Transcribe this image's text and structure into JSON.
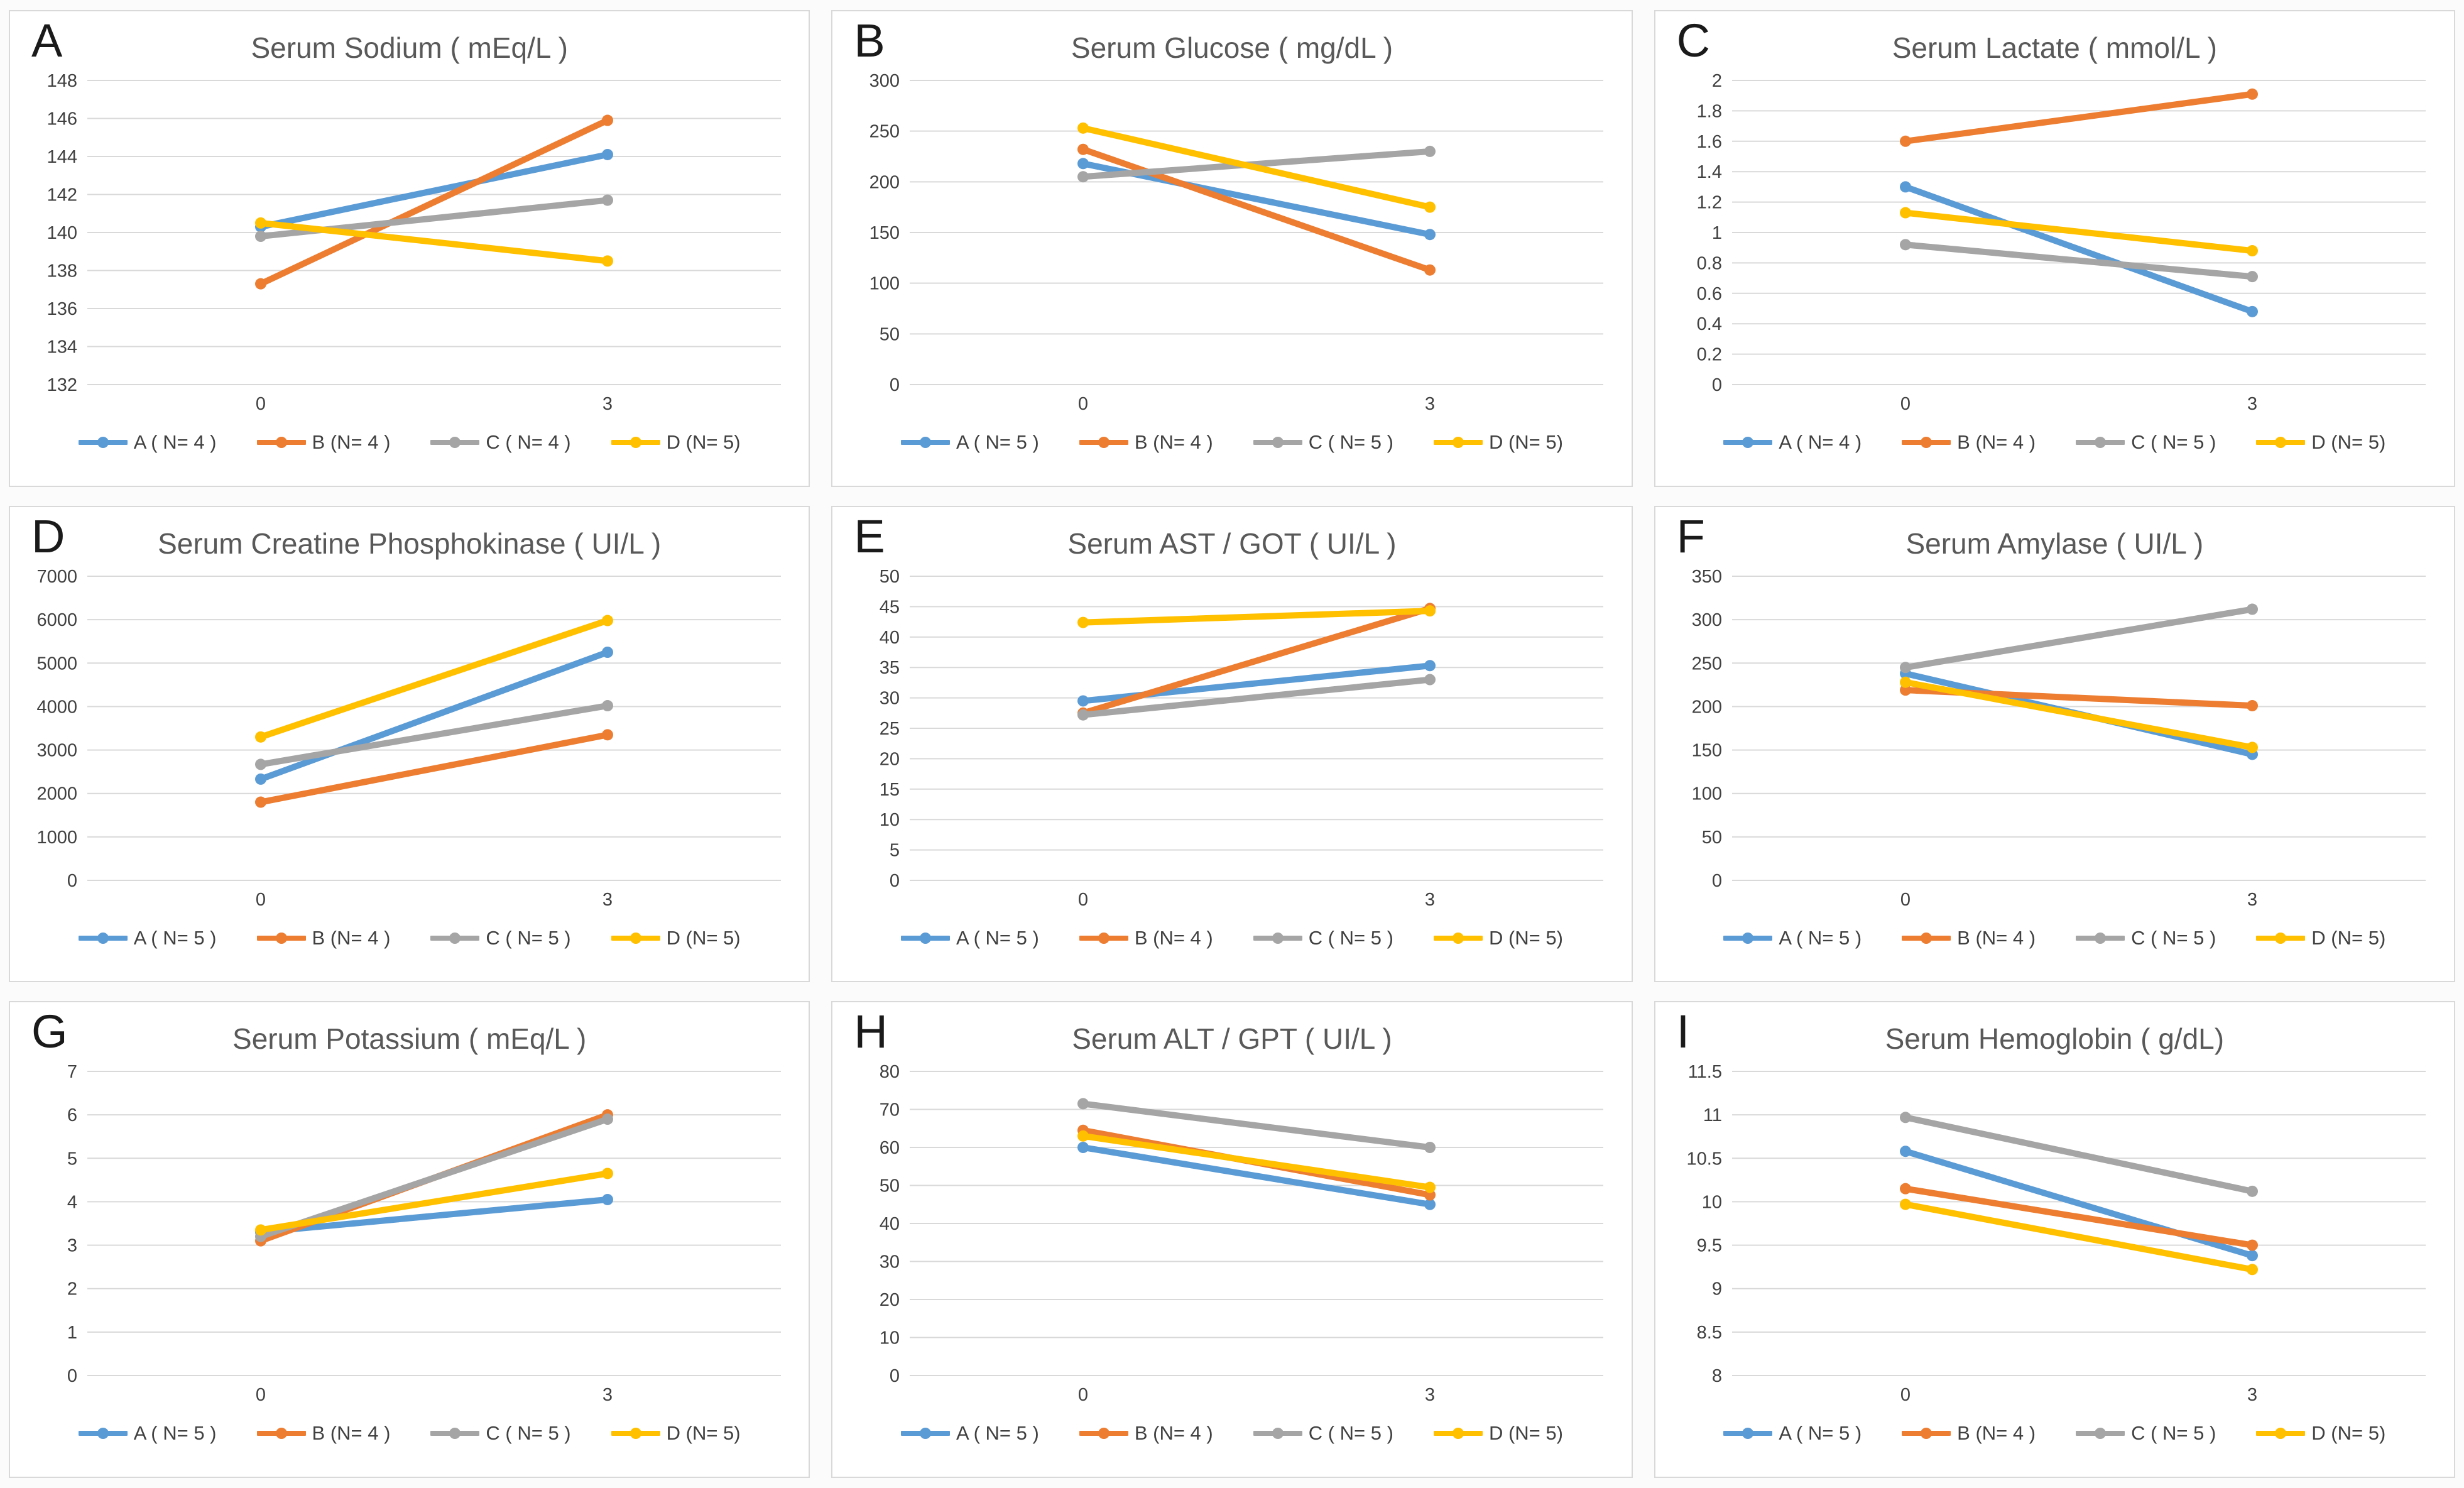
{
  "page": {
    "description": "Figure with nine Excel-style line charts of serum laboratory values for groups A-D at time 0 and 3",
    "background_color": "#fbfbfb",
    "panel_background": "#ffffff",
    "panel_border_color": "#d9d9d9",
    "gridline_color": "#d9d9d9",
    "title_color": "#595959",
    "tick_color": "#404040",
    "letter_color": "#1a1a1a"
  },
  "series_colors": {
    "blue": "#5B9BD5",
    "orange": "#ED7D31",
    "gray": "#A5A5A5",
    "yellow": "#FFC000"
  },
  "chart_data": [
    {
      "type": "line",
      "panel_label": "A",
      "title": "Serum Sodium ( mEq/L )",
      "x": [
        0,
        3
      ],
      "x_tick_labels": [
        "0",
        "3"
      ],
      "ylim": [
        132,
        148
      ],
      "yticks": [
        148,
        146,
        144,
        142,
        140,
        138,
        136,
        134,
        132
      ],
      "ytick_labels": [
        "148",
        "146",
        "144",
        "142",
        "140",
        "138",
        "136",
        "134",
        "132"
      ],
      "grid": true,
      "legend_position": "bottom",
      "series": [
        {
          "name": "A ( N= 4 )",
          "color": "#5B9BD5",
          "values": [
            140.3,
            144.1
          ]
        },
        {
          "name": "B (N= 4 )",
          "color": "#ED7D31",
          "values": [
            137.3,
            145.9
          ]
        },
        {
          "name": "C ( N= 4 )",
          "color": "#A5A5A5",
          "values": [
            139.8,
            141.7
          ]
        },
        {
          "name": "D (N= 5)",
          "color": "#FFC000",
          "values": [
            140.5,
            138.5
          ]
        }
      ]
    },
    {
      "type": "line",
      "panel_label": "B",
      "title": "Serum Glucose ( mg/dL )",
      "x": [
        0,
        3
      ],
      "x_tick_labels": [
        "0",
        "3"
      ],
      "ylim": [
        0,
        300
      ],
      "yticks": [
        300,
        250,
        200,
        150,
        100,
        50,
        0
      ],
      "ytick_labels": [
        "300",
        "250",
        "200",
        "150",
        "100",
        "50",
        "0"
      ],
      "grid": true,
      "legend_position": "bottom",
      "series": [
        {
          "name": "A ( N= 5 )",
          "color": "#5B9BD5",
          "values": [
            218,
            148
          ]
        },
        {
          "name": "B (N= 4 )",
          "color": "#ED7D31",
          "values": [
            232,
            113
          ]
        },
        {
          "name": "C ( N= 5 )",
          "color": "#A5A5A5",
          "values": [
            205,
            230
          ]
        },
        {
          "name": "D (N= 5)",
          "color": "#FFC000",
          "values": [
            253,
            175
          ]
        }
      ]
    },
    {
      "type": "line",
      "panel_label": "C",
      "title": "Serum Lactate ( mmol/L )",
      "x": [
        0,
        3
      ],
      "x_tick_labels": [
        "0",
        "3"
      ],
      "ylim": [
        0,
        2
      ],
      "yticks": [
        2,
        1.8,
        1.6,
        1.4,
        1.2,
        1,
        0.8,
        0.6,
        0.4,
        0.2,
        0
      ],
      "ytick_labels": [
        "2",
        "1.8",
        "1.6",
        "1.4",
        "1.2",
        "1",
        "0.8",
        "0.6",
        "0.4",
        "0.2",
        "0"
      ],
      "grid": true,
      "legend_position": "bottom",
      "series": [
        {
          "name": "A ( N= 4 )",
          "color": "#5B9BD5",
          "values": [
            1.3,
            0.48
          ]
        },
        {
          "name": "B (N= 4 )",
          "color": "#ED7D31",
          "values": [
            1.6,
            1.91
          ]
        },
        {
          "name": "C ( N= 5 )",
          "color": "#A5A5A5",
          "values": [
            0.92,
            0.71
          ]
        },
        {
          "name": "D (N= 5)",
          "color": "#FFC000",
          "values": [
            1.13,
            0.88
          ]
        }
      ]
    },
    {
      "type": "line",
      "panel_label": "D",
      "title": "Serum Creatine Phosphokinase ( UI/L )",
      "x": [
        0,
        3
      ],
      "x_tick_labels": [
        "0",
        "3"
      ],
      "ylim": [
        0,
        7000
      ],
      "yticks": [
        7000,
        6000,
        5000,
        4000,
        3000,
        2000,
        1000,
        0
      ],
      "ytick_labels": [
        "7000",
        "6000",
        "5000",
        "4000",
        "3000",
        "2000",
        "1000",
        "0"
      ],
      "grid": true,
      "legend_position": "bottom",
      "series": [
        {
          "name": "A ( N= 5 )",
          "color": "#5B9BD5",
          "values": [
            2330,
            5250
          ]
        },
        {
          "name": "B (N= 4 )",
          "color": "#ED7D31",
          "values": [
            1800,
            3350
          ]
        },
        {
          "name": "C ( N= 5 )",
          "color": "#A5A5A5",
          "values": [
            2670,
            4020
          ]
        },
        {
          "name": "D (N= 5)",
          "color": "#FFC000",
          "values": [
            3300,
            5980
          ]
        }
      ]
    },
    {
      "type": "line",
      "panel_label": "E",
      "title": "Serum AST / GOT ( UI/L )",
      "x": [
        0,
        3
      ],
      "x_tick_labels": [
        "0",
        "3"
      ],
      "ylim": [
        0,
        50
      ],
      "yticks": [
        50,
        45,
        40,
        35,
        30,
        25,
        20,
        15,
        10,
        5,
        0
      ],
      "ytick_labels": [
        "50",
        "45",
        "40",
        "35",
        "30",
        "25",
        "20",
        "15",
        "10",
        "5",
        "0"
      ],
      "grid": true,
      "legend_position": "bottom",
      "series": [
        {
          "name": "A ( N= 5 )",
          "color": "#5B9BD5",
          "values": [
            29.5,
            35.3
          ]
        },
        {
          "name": "B (N= 4 )",
          "color": "#ED7D31",
          "values": [
            27.5,
            44.7
          ]
        },
        {
          "name": "C ( N= 5 )",
          "color": "#A5A5A5",
          "values": [
            27.2,
            33
          ]
        },
        {
          "name": "D (N= 5)",
          "color": "#FFC000",
          "values": [
            42.4,
            44.3
          ]
        }
      ]
    },
    {
      "type": "line",
      "panel_label": "F",
      "title": "Serum Amylase ( UI/L )",
      "x": [
        0,
        3
      ],
      "x_tick_labels": [
        "0",
        "3"
      ],
      "ylim": [
        0,
        350
      ],
      "yticks": [
        350,
        300,
        250,
        200,
        150,
        100,
        50,
        0
      ],
      "ytick_labels": [
        "350",
        "300",
        "250",
        "200",
        "150",
        "100",
        "50",
        "0"
      ],
      "grid": true,
      "legend_position": "bottom",
      "series": [
        {
          "name": "A ( N= 5 )",
          "color": "#5B9BD5",
          "values": [
            238,
            145
          ]
        },
        {
          "name": "B (N= 4 )",
          "color": "#ED7D31",
          "values": [
            219,
            201
          ]
        },
        {
          "name": "C ( N= 5 )",
          "color": "#A5A5A5",
          "values": [
            245,
            312
          ]
        },
        {
          "name": "D (N= 5)",
          "color": "#FFC000",
          "values": [
            228,
            153
          ]
        }
      ]
    },
    {
      "type": "line",
      "panel_label": "G",
      "title": "Serum Potassium ( mEq/L )",
      "x": [
        0,
        3
      ],
      "x_tick_labels": [
        "0",
        "3"
      ],
      "ylim": [
        0,
        7
      ],
      "yticks": [
        7,
        6,
        5,
        4,
        3,
        2,
        1,
        0
      ],
      "ytick_labels": [
        "7",
        "6",
        "5",
        "4",
        "3",
        "2",
        "1",
        "0"
      ],
      "grid": true,
      "legend_position": "bottom",
      "series": [
        {
          "name": "A ( N= 5 )",
          "color": "#5B9BD5",
          "values": [
            3.3,
            4.05
          ]
        },
        {
          "name": "B (N= 4 )",
          "color": "#ED7D31",
          "values": [
            3.1,
            6.0
          ]
        },
        {
          "name": "C ( N= 5 )",
          "color": "#A5A5A5",
          "values": [
            3.2,
            5.9
          ]
        },
        {
          "name": "D (N= 5)",
          "color": "#FFC000",
          "values": [
            3.35,
            4.65
          ]
        }
      ]
    },
    {
      "type": "line",
      "panel_label": "H",
      "title": "Serum ALT / GPT ( UI/L )",
      "x": [
        0,
        3
      ],
      "x_tick_labels": [
        "0",
        "3"
      ],
      "ylim": [
        0,
        80
      ],
      "yticks": [
        80,
        70,
        60,
        50,
        40,
        30,
        20,
        10,
        0
      ],
      "ytick_labels": [
        "80",
        "70",
        "60",
        "50",
        "40",
        "30",
        "20",
        "10",
        "0"
      ],
      "grid": true,
      "legend_position": "bottom",
      "series": [
        {
          "name": "A ( N= 5 )",
          "color": "#5B9BD5",
          "values": [
            60,
            45
          ]
        },
        {
          "name": "B (N= 4 )",
          "color": "#ED7D31",
          "values": [
            64.5,
            47.5
          ]
        },
        {
          "name": "C ( N= 5 )",
          "color": "#A5A5A5",
          "values": [
            71.5,
            60
          ]
        },
        {
          "name": "D (N= 5)",
          "color": "#FFC000",
          "values": [
            63,
            49.5
          ]
        }
      ]
    },
    {
      "type": "line",
      "panel_label": "I",
      "title": "Serum Hemoglobin ( g/dL)",
      "x": [
        0,
        3
      ],
      "x_tick_labels": [
        "0",
        "3"
      ],
      "ylim": [
        8,
        11.5
      ],
      "yticks": [
        11.5,
        11,
        10.5,
        10,
        9.5,
        9,
        8.5,
        8
      ],
      "ytick_labels": [
        "11.5",
        "11",
        "10.5",
        "10",
        "9.5",
        "9",
        "8.5",
        "8"
      ],
      "grid": true,
      "legend_position": "bottom",
      "series": [
        {
          "name": "A ( N= 5 )",
          "color": "#5B9BD5",
          "values": [
            10.58,
            9.38
          ]
        },
        {
          "name": "B (N= 4 )",
          "color": "#ED7D31",
          "values": [
            10.15,
            9.5
          ]
        },
        {
          "name": "C ( N= 5 )",
          "color": "#A5A5A5",
          "values": [
            10.97,
            10.12
          ]
        },
        {
          "name": "D (N= 5)",
          "color": "#FFC000",
          "values": [
            9.97,
            9.22
          ]
        }
      ]
    }
  ]
}
